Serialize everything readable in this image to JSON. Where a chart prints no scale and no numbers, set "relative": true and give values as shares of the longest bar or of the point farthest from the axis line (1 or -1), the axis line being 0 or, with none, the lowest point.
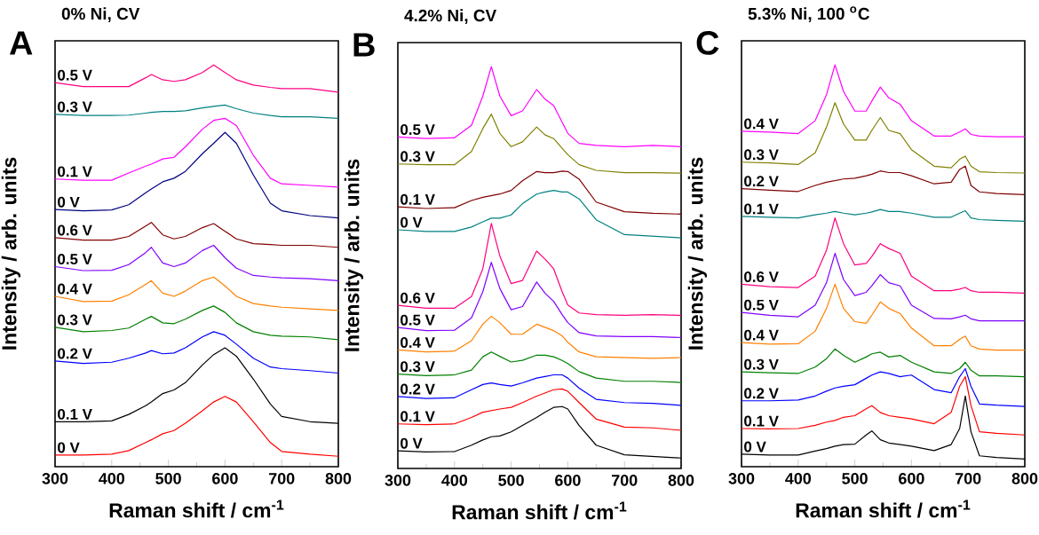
{
  "chart_data": [
    {
      "type": "line",
      "title": "0% Ni, CV",
      "xlabel": "Raman shift / cm$^{-1}$",
      "ylabel": "Intensity / arb. units",
      "annotations": [
        "A"
      ],
      "relative": true,
      "xlim": [
        300,
        800
      ],
      "xticks": [
        300,
        {
          "value": 350,
          "label": null
        },
        400,
        {
          "value": 450,
          "label": null
        },
        500,
        {
          "value": 550,
          "label": null
        },
        600,
        {
          "value": 650,
          "label": null
        },
        700,
        {
          "value": 750,
          "label": null
        },
        800
      ],
      "x": [
        300,
        350,
        400,
        430,
        460,
        470,
        490,
        510,
        530,
        560,
        580,
        600,
        620,
        650,
        680,
        700,
        750,
        800
      ],
      "series": [
        {
          "name": "0 V",
          "color": "#ff0000",
          "values": [
            0.029,
            0.029,
            0.031,
            0.04,
            0.06,
            0.067,
            0.082,
            0.09,
            0.108,
            0.139,
            0.161,
            0.175,
            0.161,
            0.112,
            0.06,
            0.038,
            0.031,
            0.026
          ]
        },
        {
          "name": "0.1 V",
          "color": "#000000",
          "values": [
            0.112,
            0.112,
            0.114,
            0.13,
            0.152,
            0.161,
            0.182,
            0.191,
            0.209,
            0.253,
            0.279,
            0.296,
            0.275,
            0.218,
            0.156,
            0.125,
            0.112,
            0.108
          ]
        },
        {
          "name": "0.2 V",
          "color": "#0000ff",
          "values": [
            0.263,
            0.257,
            0.26,
            0.27,
            0.283,
            0.289,
            0.281,
            0.283,
            0.296,
            0.323,
            0.336,
            0.327,
            0.305,
            0.27,
            0.248,
            0.244,
            0.239,
            0.233
          ]
        },
        {
          "name": "0.3 V",
          "color": "#008000",
          "values": [
            0.347,
            0.336,
            0.339,
            0.345,
            0.367,
            0.374,
            0.358,
            0.356,
            0.367,
            0.389,
            0.4,
            0.384,
            0.358,
            0.336,
            0.327,
            0.325,
            0.323,
            0.316
          ]
        },
        {
          "name": "0.4 V",
          "color": "#ff8000",
          "values": [
            0.424,
            0.411,
            0.412,
            0.428,
            0.454,
            0.463,
            0.432,
            0.424,
            0.437,
            0.463,
            0.472,
            0.45,
            0.424,
            0.406,
            0.4,
            0.397,
            0.393,
            0.389
          ]
        },
        {
          "name": "0.5 V",
          "color": "#8000ff",
          "values": [
            0.498,
            0.488,
            0.489,
            0.503,
            0.533,
            0.546,
            0.507,
            0.498,
            0.507,
            0.538,
            0.551,
            0.52,
            0.494,
            0.476,
            0.472,
            0.47,
            0.468,
            0.463
          ]
        },
        {
          "name": "0.6 V",
          "color": "#800000",
          "values": [
            0.57,
            0.564,
            0.564,
            0.573,
            0.599,
            0.608,
            0.577,
            0.567,
            0.573,
            0.595,
            0.605,
            0.586,
            0.567,
            0.555,
            0.553,
            0.551,
            0.551,
            0.546
          ]
        },
        {
          "name": "0 V",
          "color": "#000080",
          "values": [
            0.64,
            0.637,
            0.639,
            0.652,
            0.682,
            0.691,
            0.709,
            0.718,
            0.735,
            0.779,
            0.805,
            0.832,
            0.805,
            0.726,
            0.656,
            0.637,
            0.625,
            0.619
          ]
        },
        {
          "name": "0.1 V",
          "color": "#ff00ff",
          "values": [
            0.716,
            0.713,
            0.713,
            0.731,
            0.748,
            0.753,
            0.766,
            0.77,
            0.796,
            0.84,
            0.862,
            0.867,
            0.849,
            0.775,
            0.718,
            0.704,
            0.7,
            0.696
          ]
        },
        {
          "name": "0.3 V",
          "color": "#008080",
          "values": [
            0.877,
            0.874,
            0.874,
            0.875,
            0.88,
            0.882,
            0.884,
            0.884,
            0.886,
            0.893,
            0.897,
            0.9,
            0.891,
            0.88,
            0.874,
            0.871,
            0.871,
            0.867
          ]
        },
        {
          "name": "0.5 V",
          "color": "#ff0080",
          "values": [
            0.956,
            0.946,
            0.946,
            0.946,
            0.968,
            0.976,
            0.963,
            0.959,
            0.963,
            0.981,
            1,
            0.981,
            0.963,
            0.95,
            0.944,
            0.941,
            0.941,
            0.932
          ]
        }
      ]
    },
    {
      "type": "line",
      "title": "4.2% Ni, CV",
      "xlabel": "Raman shift / cm$^{-1}$",
      "ylabel": "Intensity / arb. units",
      "annotations": [
        "B"
      ],
      "relative": true,
      "xlim": [
        300,
        800
      ],
      "xticks": [
        300,
        {
          "value": 350,
          "label": null
        },
        400,
        {
          "value": 450,
          "label": null
        },
        500,
        {
          "value": 550,
          "label": null
        },
        600,
        {
          "value": 650,
          "label": null
        },
        700,
        {
          "value": 750,
          "label": null
        },
        800
      ],
      "x": [
        300,
        350,
        400,
        430,
        450,
        465,
        480,
        500,
        520,
        545,
        560,
        575,
        590,
        600,
        620,
        650,
        700,
        750,
        800
      ],
      "series": [
        {
          "name": "0 V",
          "color": "#000000",
          "values": [
            0.044,
            0.041,
            0.042,
            0.058,
            0.071,
            0.079,
            0.081,
            0.091,
            0.107,
            0.127,
            0.14,
            0.152,
            0.154,
            0.148,
            0.107,
            0.058,
            0.034,
            0.03,
            0.026
          ]
        },
        {
          "name": "0.1 V",
          "color": "#ff0000",
          "values": [
            0.111,
            0.109,
            0.111,
            0.127,
            0.14,
            0.144,
            0.148,
            0.152,
            0.164,
            0.18,
            0.188,
            0.196,
            0.198,
            0.192,
            0.164,
            0.123,
            0.103,
            0.101,
            0.095
          ]
        },
        {
          "name": "0.2 V",
          "color": "#0000ff",
          "values": [
            0.179,
            0.174,
            0.176,
            0.196,
            0.209,
            0.213,
            0.209,
            0.205,
            0.213,
            0.225,
            0.229,
            0.233,
            0.233,
            0.225,
            0.2,
            0.172,
            0.164,
            0.162,
            0.157
          ]
        },
        {
          "name": "0.3 V",
          "color": "#008000",
          "values": [
            0.235,
            0.231,
            0.233,
            0.245,
            0.278,
            0.29,
            0.279,
            0.265,
            0.269,
            0.282,
            0.282,
            0.278,
            0.269,
            0.261,
            0.241,
            0.225,
            0.217,
            0.217,
            0.214
          ]
        },
        {
          "name": "0.4 V",
          "color": "#ff8000",
          "values": [
            0.295,
            0.29,
            0.292,
            0.318,
            0.359,
            0.379,
            0.363,
            0.334,
            0.334,
            0.359,
            0.351,
            0.343,
            0.33,
            0.314,
            0.29,
            0.278,
            0.276,
            0.274,
            0.276
          ]
        },
        {
          "name": "0.5 V",
          "color": "#8000ff",
          "values": [
            0.351,
            0.343,
            0.344,
            0.375,
            0.44,
            0.513,
            0.448,
            0.395,
            0.403,
            0.464,
            0.436,
            0.416,
            0.383,
            0.363,
            0.338,
            0.33,
            0.328,
            0.328,
            0.326
          ]
        },
        {
          "name": "0.6 V",
          "color": "#ff0080",
          "values": [
            0.406,
            0.399,
            0.399,
            0.428,
            0.497,
            0.61,
            0.529,
            0.46,
            0.468,
            0.541,
            0.521,
            0.497,
            0.44,
            0.407,
            0.387,
            0.383,
            0.381,
            0.383,
            0.381
          ]
        },
        {
          "name": "0 V",
          "color": "#008080",
          "values": [
            0.594,
            0.59,
            0.59,
            0.601,
            0.614,
            0.623,
            0.623,
            0.631,
            0.659,
            0.683,
            0.688,
            0.692,
            0.688,
            0.688,
            0.671,
            0.619,
            0.582,
            0.578,
            0.574
          ]
        },
        {
          "name": "0.1 V",
          "color": "#800000",
          "values": [
            0.651,
            0.647,
            0.649,
            0.667,
            0.675,
            0.679,
            0.683,
            0.692,
            0.716,
            0.739,
            0.736,
            0.736,
            0.74,
            0.739,
            0.72,
            0.663,
            0.639,
            0.635,
            0.633
          ]
        },
        {
          "name": "0.3 V",
          "color": "#808000",
          "values": [
            0.758,
            0.756,
            0.756,
            0.789,
            0.846,
            0.882,
            0.834,
            0.801,
            0.813,
            0.85,
            0.83,
            0.821,
            0.797,
            0.781,
            0.756,
            0.742,
            0.736,
            0.736,
            0.735
          ]
        },
        {
          "name": "0.5 V",
          "color": "#ff00ff",
          "values": [
            0.825,
            0.821,
            0.823,
            0.854,
            0.927,
            1,
            0.927,
            0.878,
            0.89,
            0.943,
            0.919,
            0.903,
            0.862,
            0.834,
            0.809,
            0.804,
            0.801,
            0.804,
            0.801
          ]
        }
      ]
    },
    {
      "type": "line",
      "title": "5.3% Ni, 100 $^{o}$C",
      "xlabel": "Raman shift / cm$^{-1}$",
      "ylabel": "Intensity / arb. units",
      "annotations": [
        "C"
      ],
      "relative": true,
      "xlim": [
        300,
        800
      ],
      "xticks": [
        300,
        {
          "value": 350,
          "label": null
        },
        400,
        {
          "value": 450,
          "label": null
        },
        500,
        {
          "value": 550,
          "label": null
        },
        600,
        {
          "value": 650,
          "label": null
        },
        700,
        {
          "value": 750,
          "label": null
        },
        800
      ],
      "x": [
        300,
        350,
        400,
        430,
        450,
        465,
        480,
        500,
        520,
        530,
        545,
        560,
        580,
        600,
        640,
        670,
        685,
        695,
        705,
        720,
        750,
        800
      ],
      "series": [
        {
          "name": "0 V",
          "color": "#000000",
          "values": [
            0.031,
            0.029,
            0.029,
            0.039,
            0.045,
            0.051,
            0.055,
            0.056,
            0.079,
            0.089,
            0.067,
            0.059,
            0.055,
            0.051,
            0.04,
            0.055,
            0.095,
            0.176,
            0.087,
            0.027,
            0.023,
            0.019
          ]
        },
        {
          "name": "0.1 V",
          "color": "#ff0000",
          "values": [
            0.095,
            0.094,
            0.095,
            0.103,
            0.111,
            0.115,
            0.123,
            0.127,
            0.144,
            0.152,
            0.135,
            0.127,
            0.123,
            0.119,
            0.107,
            0.135,
            0.2,
            0.224,
            0.152,
            0.087,
            0.083,
            0.079
          ]
        },
        {
          "name": "0.2 V",
          "color": "#0000ff",
          "values": [
            0.164,
            0.164,
            0.166,
            0.176,
            0.188,
            0.196,
            0.2,
            0.204,
            0.22,
            0.228,
            0.236,
            0.232,
            0.224,
            0.228,
            0.192,
            0.184,
            0.224,
            0.244,
            0.2,
            0.156,
            0.153,
            0.15
          ]
        },
        {
          "name": "0.3 V",
          "color": "#008000",
          "values": [
            0.236,
            0.234,
            0.232,
            0.248,
            0.269,
            0.293,
            0.277,
            0.26,
            0.273,
            0.281,
            0.285,
            0.273,
            0.277,
            0.26,
            0.236,
            0.232,
            0.244,
            0.26,
            0.24,
            0.226,
            0.226,
            0.224
          ]
        },
        {
          "name": "0.4 V",
          "color": "#ff8000",
          "values": [
            0.309,
            0.305,
            0.306,
            0.337,
            0.394,
            0.454,
            0.394,
            0.361,
            0.357,
            0.377,
            0.41,
            0.394,
            0.381,
            0.345,
            0.301,
            0.301,
            0.317,
            0.325,
            0.301,
            0.293,
            0.29,
            0.29
          ]
        },
        {
          "name": "0.5 V",
          "color": "#8000ff",
          "values": [
            0.384,
            0.377,
            0.373,
            0.402,
            0.458,
            0.531,
            0.466,
            0.426,
            0.434,
            0.45,
            0.478,
            0.458,
            0.45,
            0.402,
            0.369,
            0.368,
            0.373,
            0.377,
            0.368,
            0.363,
            0.363,
            0.363
          ]
        },
        {
          "name": "0.6 V",
          "color": "#ff0080",
          "values": [
            0.454,
            0.448,
            0.446,
            0.474,
            0.539,
            0.619,
            0.555,
            0.502,
            0.506,
            0.523,
            0.555,
            0.543,
            0.531,
            0.474,
            0.438,
            0.438,
            0.442,
            0.446,
            0.438,
            0.434,
            0.434,
            0.432
          ]
        },
        {
          "name": "0.1 V",
          "color": "#008080",
          "values": [
            0.623,
            0.621,
            0.619,
            0.627,
            0.631,
            0.635,
            0.631,
            0.627,
            0.631,
            0.634,
            0.64,
            0.635,
            0.635,
            0.631,
            0.621,
            0.621,
            0.631,
            0.637,
            0.619,
            0.615,
            0.613,
            0.611
          ]
        },
        {
          "name": "0.2 V",
          "color": "#800000",
          "values": [
            0.692,
            0.688,
            0.685,
            0.7,
            0.708,
            0.712,
            0.716,
            0.718,
            0.724,
            0.728,
            0.736,
            0.732,
            0.732,
            0.724,
            0.704,
            0.708,
            0.74,
            0.748,
            0.7,
            0.684,
            0.68,
            0.677
          ]
        },
        {
          "name": "0.3 V",
          "color": "#808000",
          "values": [
            0.758,
            0.756,
            0.752,
            0.781,
            0.845,
            0.906,
            0.853,
            0.813,
            0.813,
            0.837,
            0.869,
            0.837,
            0.829,
            0.789,
            0.748,
            0.744,
            0.765,
            0.773,
            0.748,
            0.734,
            0.732,
            0.731
          ]
        },
        {
          "name": "0.4 V",
          "color": "#ff00ff",
          "values": [
            0.835,
            0.833,
            0.829,
            0.861,
            0.926,
            1,
            0.934,
            0.885,
            0.885,
            0.91,
            0.945,
            0.918,
            0.902,
            0.861,
            0.823,
            0.823,
            0.833,
            0.841,
            0.827,
            0.823,
            0.821,
            0.821
          ]
        }
      ]
    }
  ]
}
